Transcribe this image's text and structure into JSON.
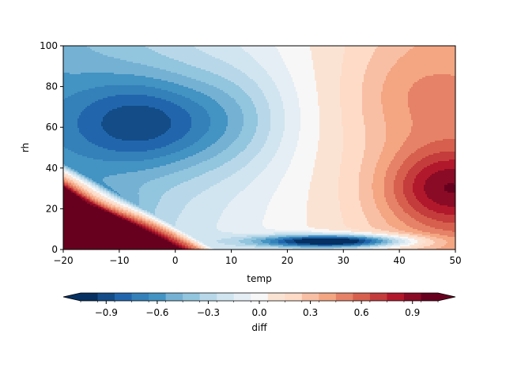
{
  "chart_data": {
    "type": "heatmap",
    "subtype": "filled-contour",
    "xlabel": "temp",
    "ylabel": "rh",
    "xlim": [
      -20,
      50
    ],
    "ylim": [
      0,
      100
    ],
    "xticks": [
      -20,
      -10,
      0,
      10,
      20,
      30,
      40,
      50
    ],
    "yticks": [
      0,
      20,
      40,
      60,
      80,
      100
    ],
    "colorbar": {
      "label": "diff",
      "orientation": "horizontal",
      "placement": "bottom",
      "extend": "both",
      "levels": [
        -1.05,
        -0.95,
        -0.85,
        -0.75,
        -0.65,
        -0.55,
        -0.45,
        -0.35,
        -0.25,
        -0.15,
        -0.05,
        0.05,
        0.15,
        0.25,
        0.35,
        0.45,
        0.55,
        0.65,
        0.75,
        0.85,
        0.95,
        1.05
      ],
      "ticks": [
        -0.9,
        -0.6,
        -0.3,
        0.0,
        0.3,
        0.6,
        0.9
      ],
      "tick_labels": [
        "−0.9",
        "−0.6",
        "−0.3",
        "0.0",
        "0.3",
        "0.6",
        "0.9"
      ],
      "colormap": "RdBu_r",
      "colors": [
        "#053061",
        "#134c87",
        "#2166ac",
        "#3480b9",
        "#4393c3",
        "#75b1d3",
        "#92c5de",
        "#b8d8e9",
        "#d1e5f0",
        "#e5eef4",
        "#f7f7f7",
        "#fbe3d4",
        "#fddbc7",
        "#f8bfa4",
        "#f4a582",
        "#e58267",
        "#d6604d",
        "#c43c3c",
        "#b2182b",
        "#8a0b25",
        "#67001f"
      ],
      "under_color": "#053061",
      "over_color": "#67001f"
    },
    "features": [
      {
        "kind": "minimum",
        "label": "upper blue basin",
        "temp": -5,
        "rh": 62,
        "value": -0.6
      },
      {
        "kind": "minimum",
        "label": "lower dark-blue trough",
        "temp": 27,
        "rh": 4,
        "value": -1.05
      },
      {
        "kind": "maximum",
        "label": "right red core",
        "temp": 48,
        "rh": 28,
        "value": 0.9
      },
      {
        "kind": "maximum",
        "label": "lower-left red region",
        "temp": -15,
        "rh": 8,
        "value": 1.05
      }
    ]
  }
}
